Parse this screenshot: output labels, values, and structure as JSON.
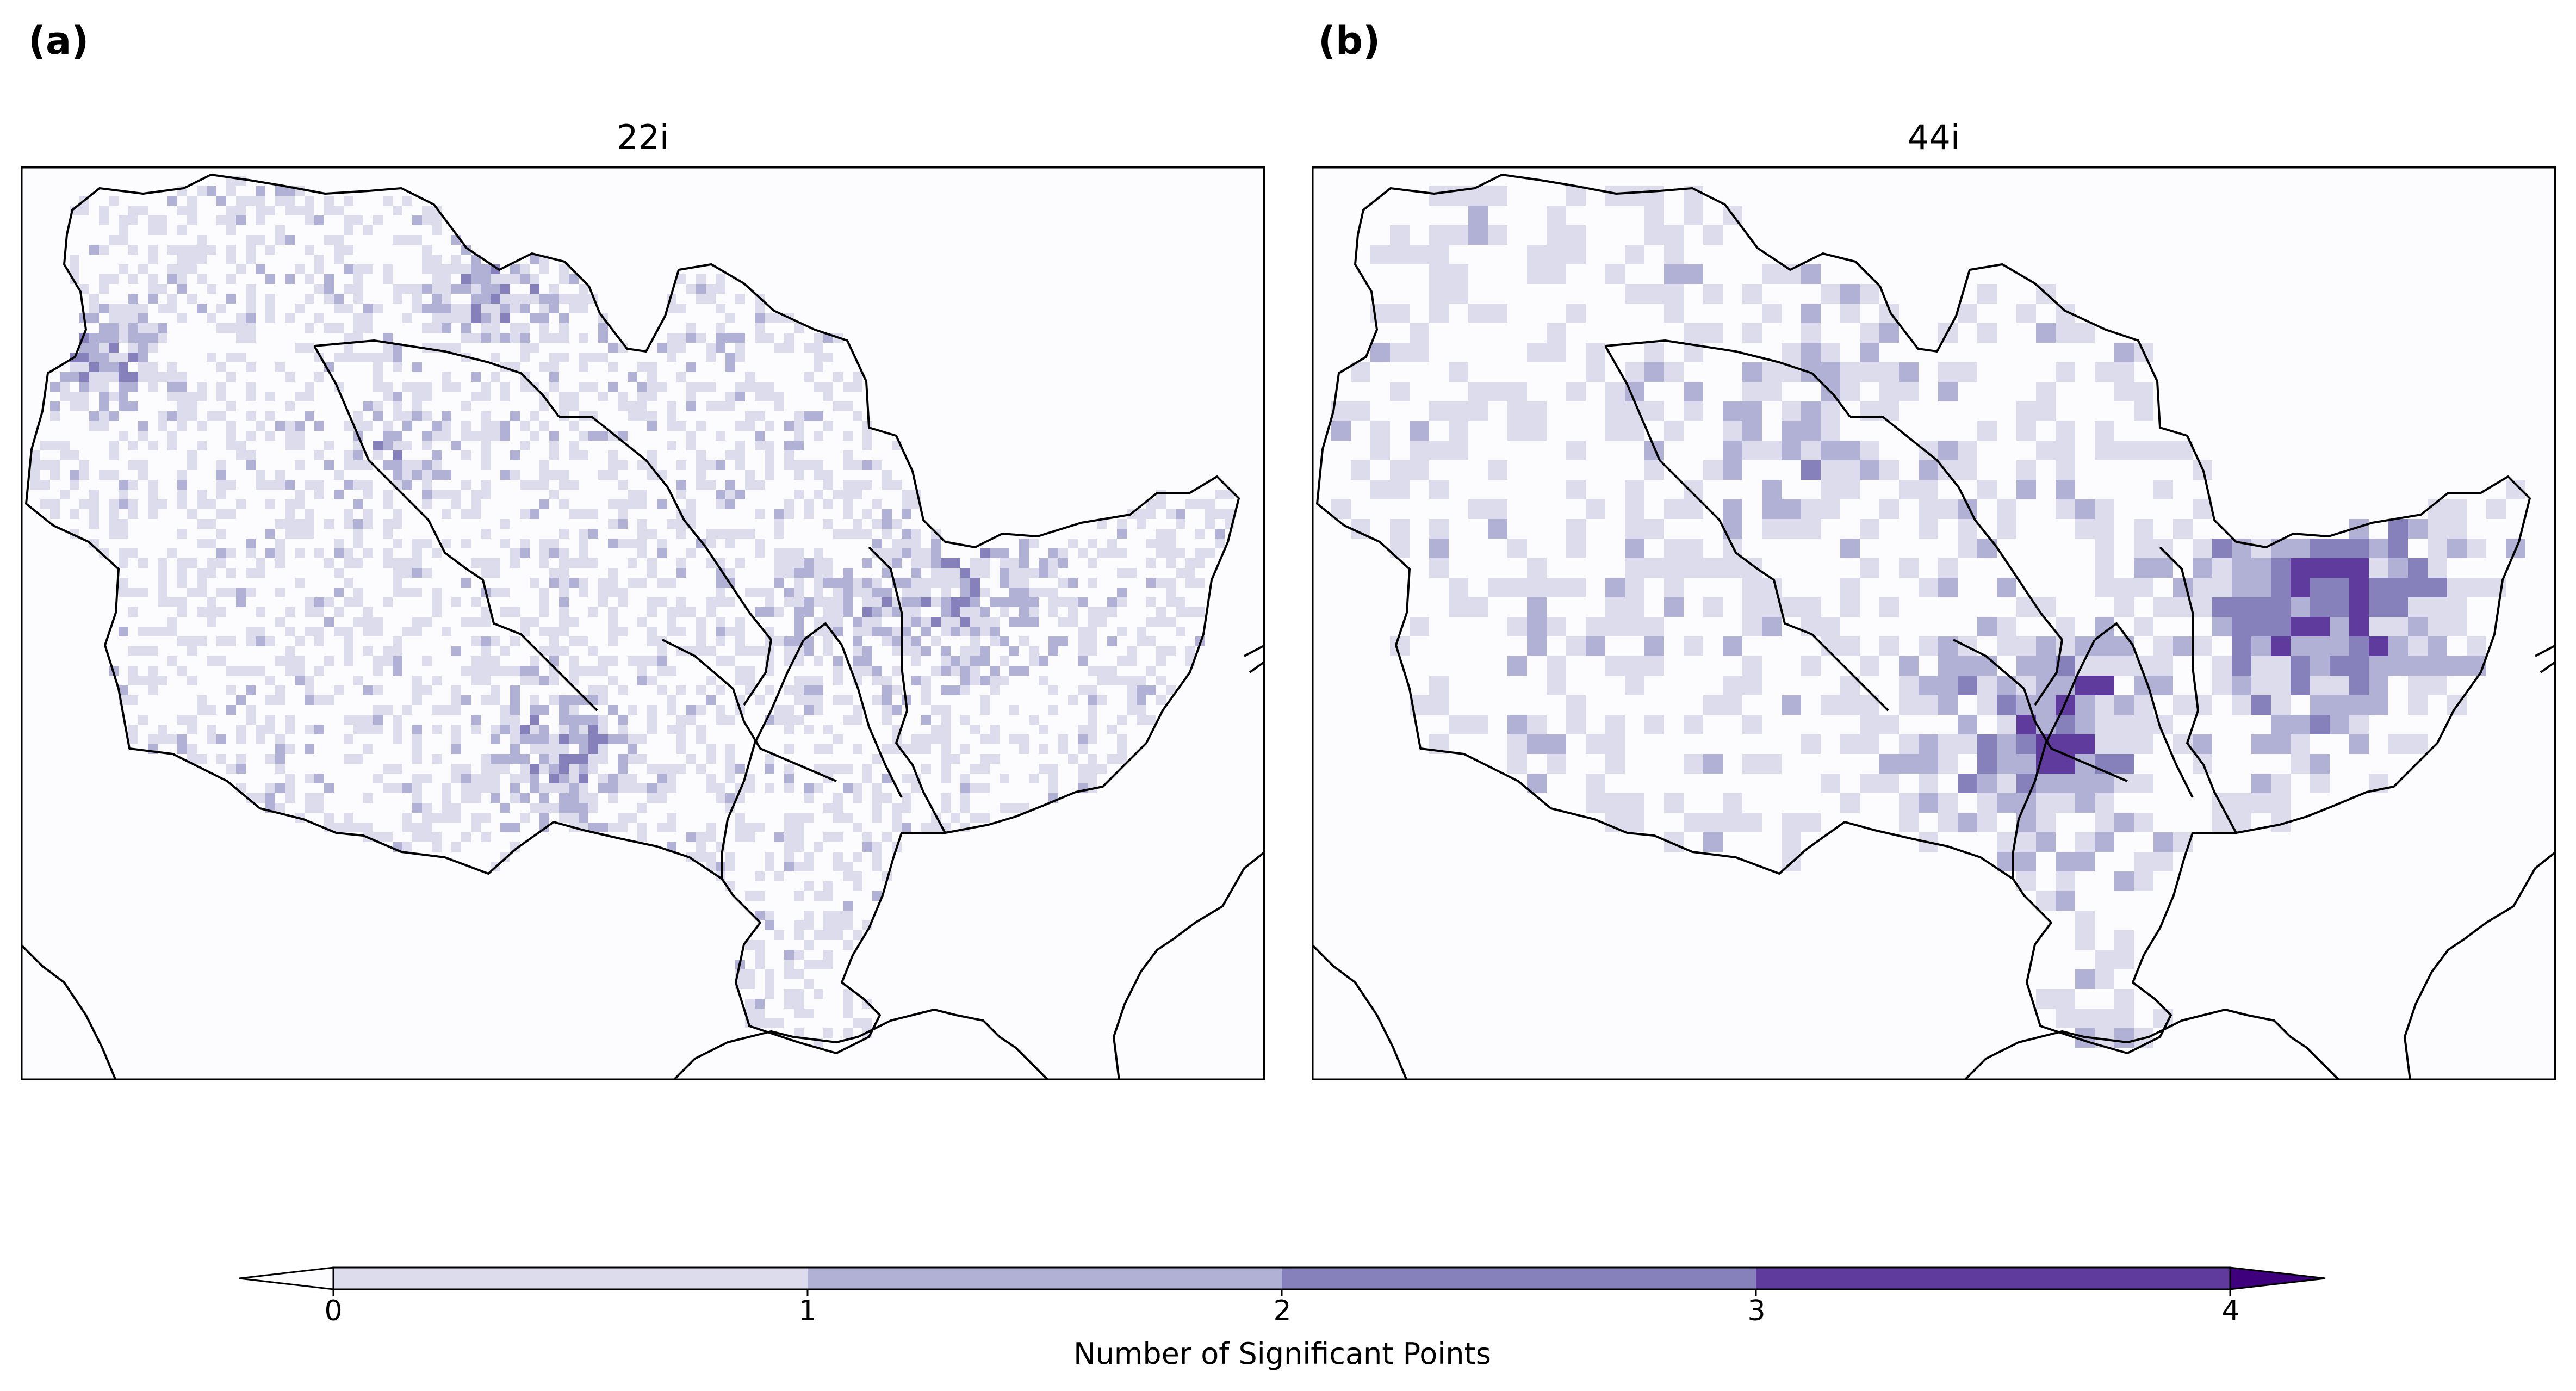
{
  "panels": [
    {
      "letter": "(a)",
      "title": "22i"
    },
    {
      "letter": "(b)",
      "title": "44i"
    }
  ],
  "colorbar": {
    "label": "Number of Significant Points",
    "ticks": [
      "0",
      "1",
      "2",
      "3",
      "4"
    ],
    "colors": [
      "#dcdcec",
      "#b1b0d5",
      "#8681ba",
      "#5e3b9c"
    ],
    "under_color": "#fcfbfd",
    "over_color": "#3f007d",
    "extend": "both"
  },
  "map": {
    "background": "#fcfbfd",
    "outline_color": "#000000",
    "shading_levels": [
      "#dcdcec",
      "#b1b0d5",
      "#8681ba",
      "#5e3b9c",
      "#3f007d"
    ]
  }
}
